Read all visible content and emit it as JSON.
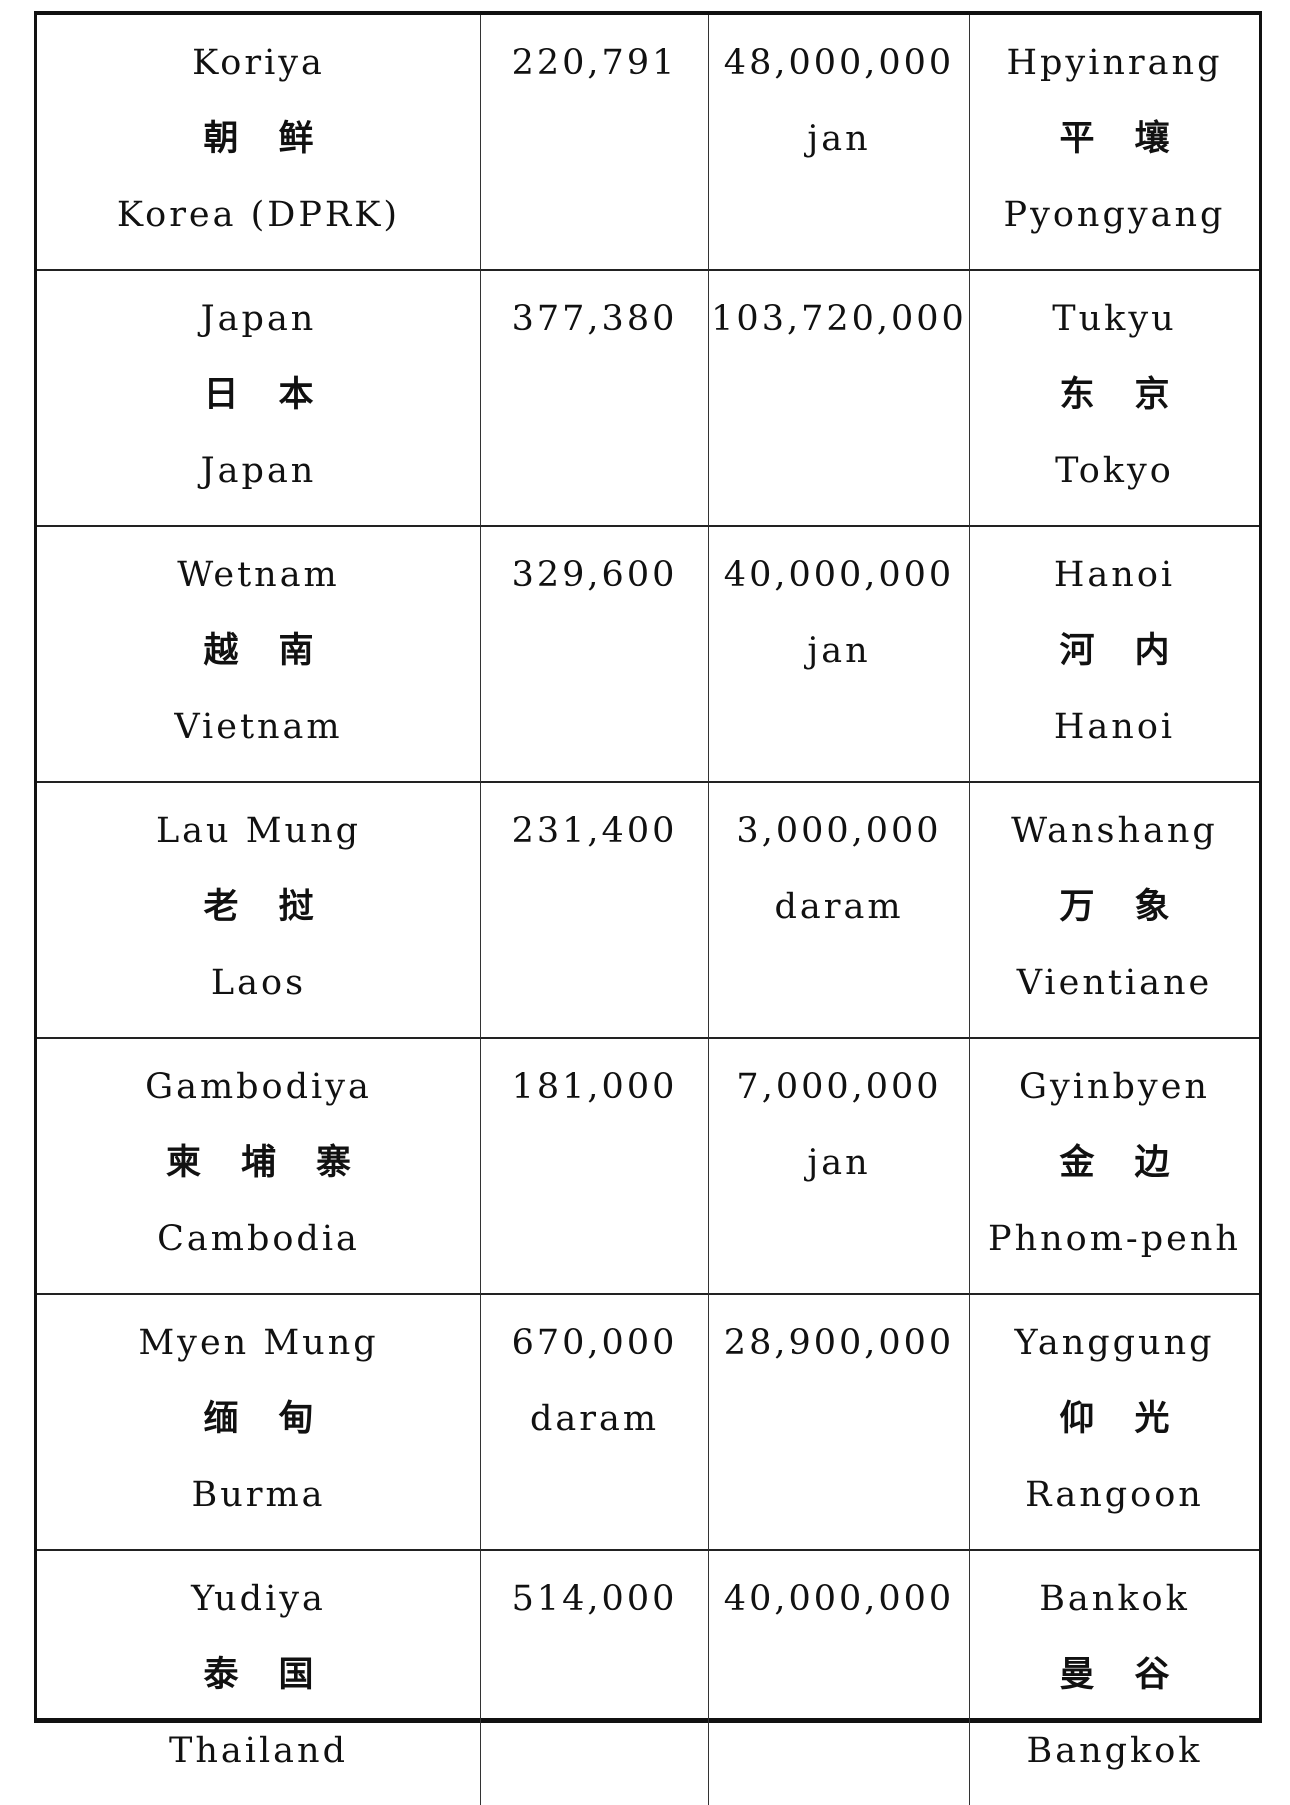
{
  "rows": [
    {
      "country": [
        "Koriya",
        "朝鲜",
        "Korea (DPRK)"
      ],
      "area": [
        "220,791"
      ],
      "population": [
        "48,000,000",
        "jan"
      ],
      "capital": [
        "Hpyinrang",
        "平壤",
        "Pyongyang"
      ]
    },
    {
      "country": [
        "Japan",
        "日本",
        "Japan"
      ],
      "area": [
        "377,380"
      ],
      "population": [
        "103,720,000"
      ],
      "capital": [
        "Tukyu",
        "东京",
        "Tokyo"
      ]
    },
    {
      "country": [
        "Wetnam",
        "越南",
        "Vietnam"
      ],
      "area": [
        "329,600"
      ],
      "population": [
        "40,000,000",
        "jan"
      ],
      "capital": [
        "Hanoi",
        "河内",
        "Hanoi"
      ]
    },
    {
      "country": [
        "Lau Mung",
        "老挝",
        "Laos"
      ],
      "area": [
        "231,400"
      ],
      "population": [
        "3,000,000",
        "daram"
      ],
      "capital": [
        "Wanshang",
        "万象",
        "Vientiane"
      ]
    },
    {
      "country": [
        "Gambodiya",
        "柬埔寨",
        "Cambodia"
      ],
      "area": [
        "181,000"
      ],
      "population": [
        "7,000,000",
        "jan"
      ],
      "capital": [
        "Gyinbyen",
        "金边",
        "Phnom-penh"
      ]
    },
    {
      "country": [
        "Myen Mung",
        "缅甸",
        "Burma"
      ],
      "area": [
        "670,000",
        "daram"
      ],
      "population": [
        "28,900,000"
      ],
      "capital": [
        "Yanggung",
        "仰光",
        "Rangoon"
      ]
    },
    {
      "country": [
        "Yudiya",
        "泰国",
        "Thailand"
      ],
      "area": [
        "514,000"
      ],
      "population": [
        "40,000,000"
      ],
      "capital": [
        "Bankok",
        "曼谷",
        "Bangkok"
      ]
    }
  ]
}
